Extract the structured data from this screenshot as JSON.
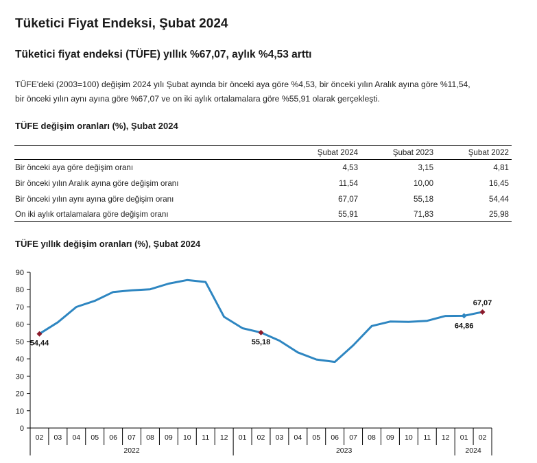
{
  "header": {
    "title": "Tüketici Fiyat Endeksi, Şubat 2024",
    "subtitle": "Tüketici fiyat endeksi (TÜFE) yıllık %67,07, aylık %4,53 arttı"
  },
  "paragraph": {
    "line1": "TÜFE'deki (2003=100) değişim 2024 yılı Şubat ayında bir önceki aya göre %4,53, bir önceki yılın Aralık ayına göre %11,54,",
    "line2": "bir önceki yılın aynı ayına göre %67,07 ve on iki aylık ortalamalara göre %55,91 olarak gerçekleşti."
  },
  "table": {
    "title": "TÜFE değişim oranları (%), Şubat 2024",
    "columns": [
      "",
      "Şubat 2024",
      "Şubat 2023",
      "Şubat 2022"
    ],
    "rows": [
      {
        "label": "Bir önceki aya göre değişim oranı",
        "values": [
          "4,53",
          "3,15",
          "4,81"
        ]
      },
      {
        "label": "Bir önceki yılın Aralık ayına göre değişim oranı",
        "values": [
          "11,54",
          "10,00",
          "16,45"
        ]
      },
      {
        "label": "Bir önceki yılın aynı ayına göre değişim oranı",
        "values": [
          "67,07",
          "55,18",
          "54,44"
        ]
      },
      {
        "label": "On iki aylık ortalamalara göre değişim oranı",
        "values": [
          "55,91",
          "71,83",
          "25,98"
        ]
      }
    ]
  },
  "chart_data": {
    "type": "line",
    "title": "TÜFE yıllık değişim oranları (%), Şubat 2024",
    "xlabel": "",
    "ylabel": "",
    "ylim": [
      0,
      90
    ],
    "yticks": [
      "0",
      "10",
      "20",
      "30",
      "40",
      "50",
      "60",
      "70",
      "80",
      "90"
    ],
    "grid": false,
    "x": [
      "02",
      "03",
      "04",
      "05",
      "06",
      "07",
      "08",
      "09",
      "10",
      "11",
      "12",
      "01",
      "02",
      "03",
      "04",
      "05",
      "06",
      "07",
      "08",
      "09",
      "10",
      "11",
      "12",
      "01",
      "02"
    ],
    "year_groups": [
      {
        "label": "2022",
        "count": 11
      },
      {
        "label": "2023",
        "count": 12
      },
      {
        "label": "2024",
        "count": 2
      }
    ],
    "series": [
      {
        "name": "TÜFE yıllık değişim",
        "color": "#2e86c1",
        "values": [
          54.44,
          61.14,
          69.97,
          73.5,
          78.62,
          79.6,
          80.21,
          83.45,
          85.51,
          84.39,
          64.27,
          57.68,
          55.18,
          50.51,
          43.68,
          39.59,
          38.21,
          47.83,
          58.94,
          61.53,
          61.36,
          61.98,
          64.77,
          64.86,
          67.07
        ]
      }
    ],
    "annotations": [
      {
        "index": 0,
        "text": "54,44",
        "marker": "#8b1a2b"
      },
      {
        "index": 12,
        "text": "55,18",
        "marker": "#8b1a2b"
      },
      {
        "index": 23,
        "text": "64,86",
        "marker": "#2e86c1"
      },
      {
        "index": 24,
        "text": "67,07",
        "marker": "#8b1a2b"
      }
    ]
  }
}
